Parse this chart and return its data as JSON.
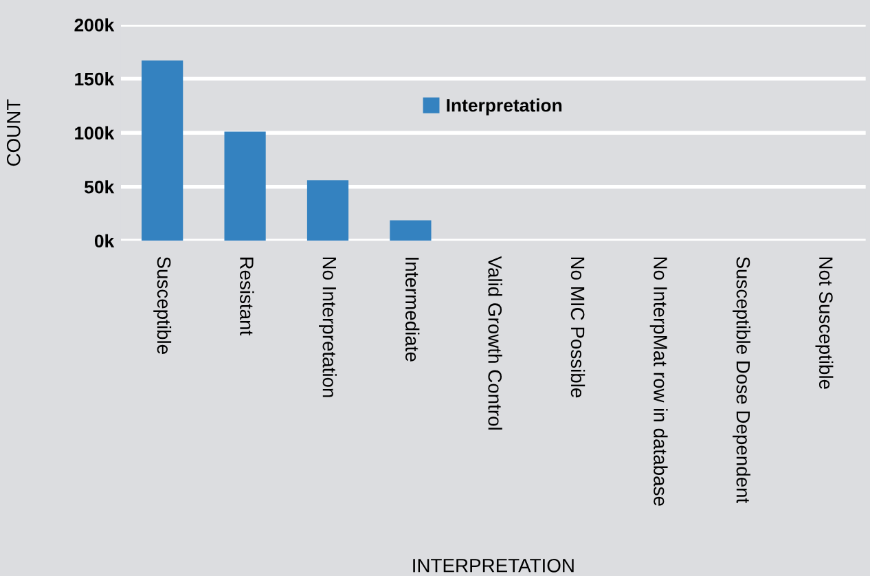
{
  "chart_data": {
    "type": "bar",
    "xlabel": "INTERPRETATION",
    "ylabel": "COUNT",
    "categories": [
      "Susceptible",
      "Resistant",
      "No Interpretation",
      "Intermediate",
      "Valid Growth Control",
      "No MIC Possible",
      "No InterpMat row in database",
      "Susceptible Dose Dependent",
      "Not Susceptible"
    ],
    "series": [
      {
        "name": "Interpretation",
        "color": "#3482c0",
        "values": [
          167000,
          101000,
          56000,
          19000,
          0,
          0,
          0,
          0,
          0
        ]
      }
    ],
    "ylim": [
      0,
      200000
    ],
    "yticks": [
      {
        "value": 0,
        "label": "0k"
      },
      {
        "value": 50000,
        "label": "50k"
      },
      {
        "value": 100000,
        "label": "100k"
      },
      {
        "value": 150000,
        "label": "150k"
      },
      {
        "value": 200000,
        "label": "200k"
      }
    ],
    "grid": "y",
    "legend": "top"
  }
}
